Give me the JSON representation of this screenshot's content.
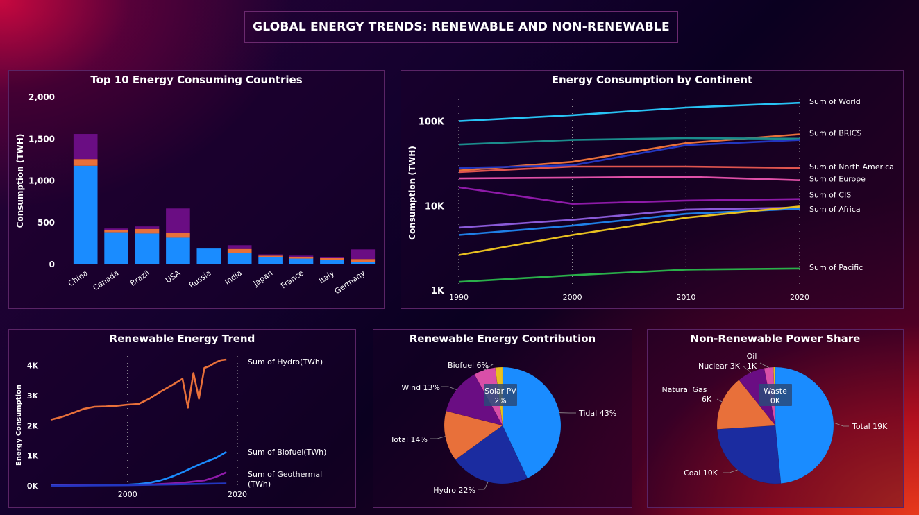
{
  "header": {
    "title": "GLOBAL ENERGY TRENDS: RENEWABLE AND NON-RENEWABLE"
  },
  "colors": {
    "blue": "#1a8cff",
    "orange": "#e8703a",
    "purple": "#6a0d83",
    "navy": "#1b2ca0",
    "magenta": "#d94fa8"
  },
  "chart_data": [
    {
      "id": "top10",
      "type": "bar",
      "title": "Top 10 Energy Consuming Countries",
      "ylabel": "Consumption (TWH)",
      "ylim": [
        0,
        2000
      ],
      "yticks": [
        "0",
        "500",
        "1,000",
        "1,500",
        "2,000"
      ],
      "categories": [
        "China",
        "Canada",
        "Brazil",
        "USA",
        "Russia",
        "India",
        "Japan",
        "France",
        "Italy",
        "Germany"
      ],
      "series": [
        {
          "values": [
            1180,
            385,
            370,
            320,
            190,
            140,
            85,
            70,
            55,
            25
          ]
        },
        {
          "values": [
            80,
            25,
            55,
            60,
            0,
            45,
            20,
            20,
            20,
            40
          ]
        },
        {
          "values": [
            300,
            20,
            30,
            290,
            0,
            45,
            15,
            15,
            10,
            115
          ]
        }
      ]
    },
    {
      "id": "continent",
      "type": "line",
      "title": "Energy Consumption by Continent",
      "ylabel": "Consumption (TWH)",
      "scale": "log",
      "ylim": [
        1000,
        200000
      ],
      "yticks": [
        {
          "v": 1000,
          "label": "1K"
        },
        {
          "v": 10000,
          "label": "10K"
        },
        {
          "v": 100000,
          "label": "100K"
        }
      ],
      "xlim": [
        1990,
        2020
      ],
      "xticks": [
        "1990",
        "2000",
        "2010",
        "2020"
      ],
      "series": [
        {
          "name": "Sum of World",
          "color": "#28c3f5",
          "x": [
            1990,
            2000,
            2010,
            2020
          ],
          "y": [
            100000,
            118000,
            145000,
            165000
          ]
        },
        {
          "name": "Sum of BRICS",
          "color": "#e8703a",
          "x": [
            1990,
            2000,
            2010,
            2020
          ],
          "y": [
            26000,
            33000,
            55000,
            70000
          ]
        },
        {
          "name": "",
          "color": "#1b8c8c",
          "x": [
            1990,
            2000,
            2010,
            2020
          ],
          "y": [
            53000,
            60000,
            63000,
            62000
          ]
        },
        {
          "name": "",
          "color": "#2336c0",
          "x": [
            1990,
            2000,
            2010,
            2020
          ],
          "y": [
            28000,
            30000,
            52000,
            60000
          ]
        },
        {
          "name": "Sum of North America",
          "color": "#e0554f",
          "x": [
            1990,
            2000,
            2010,
            2020
          ],
          "y": [
            25000,
            29000,
            29000,
            28000
          ]
        },
        {
          "name": "Sum of Europe",
          "color": "#e050a8",
          "x": [
            1990,
            2000,
            2010,
            2020
          ],
          "y": [
            21000,
            21500,
            22000,
            20000
          ]
        },
        {
          "name": "Sum of CIS",
          "color": "#8e1aa8",
          "x": [
            1990,
            2000,
            2010,
            2020
          ],
          "y": [
            16500,
            10500,
            11500,
            12000
          ]
        },
        {
          "name": "Sum of Africa",
          "color": "#8a5ad8",
          "x": [
            1990,
            2000,
            2010,
            2020
          ],
          "y": [
            5500,
            6800,
            9000,
            9500
          ]
        },
        {
          "name": "",
          "color": "#1f7fe6",
          "x": [
            1990,
            2000,
            2010,
            2020
          ],
          "y": [
            4500,
            5800,
            8000,
            9200
          ]
        },
        {
          "name": "",
          "color": "#e8c020",
          "x": [
            1990,
            2000,
            2010,
            2020
          ],
          "y": [
            2600,
            4500,
            7200,
            9800
          ]
        },
        {
          "name": "Sum of Pacific",
          "color": "#2ab04a",
          "x": [
            1990,
            2000,
            2010,
            2020
          ],
          "y": [
            1250,
            1500,
            1750,
            1800
          ]
        }
      ]
    },
    {
      "id": "renewable-trend",
      "type": "line",
      "title": "Renewable Energy Trend",
      "ylabel": "Energy Consumption",
      "ylim": [
        0,
        4500
      ],
      "yticks": [
        {
          "v": 0,
          "label": "0K"
        },
        {
          "v": 1000,
          "label": "1K"
        },
        {
          "v": 2000,
          "label": "2K"
        },
        {
          "v": 3000,
          "label": "3K"
        },
        {
          "v": 4000,
          "label": "4K"
        }
      ],
      "xlim": [
        1986,
        2020
      ],
      "xticks": [
        "2000",
        "2020"
      ],
      "series": [
        {
          "name": "Sum of Hydro(TWh)",
          "color": "#e8703a",
          "x": [
            1986,
            1988,
            1990,
            1992,
            1994,
            1996,
            1998,
            2000,
            2002,
            2004,
            2006,
            2008,
            2010,
            2011,
            2012,
            2013,
            2014,
            2015,
            2016,
            2017,
            2018
          ],
          "y": [
            2200,
            2290,
            2420,
            2560,
            2630,
            2640,
            2660,
            2700,
            2720,
            2900,
            3130,
            3340,
            3560,
            2600,
            3750,
            2900,
            3920,
            3990,
            4100,
            4180,
            4200
          ]
        },
        {
          "name": "Sum of Biofuel(TWh)",
          "color": "#1a8cff",
          "x": [
            1986,
            1990,
            1995,
            2000,
            2002,
            2004,
            2006,
            2008,
            2010,
            2012,
            2014,
            2016,
            2018
          ],
          "y": [
            20,
            25,
            30,
            40,
            60,
            100,
            180,
            300,
            450,
            620,
            780,
            920,
            1130
          ]
        },
        {
          "name": "Sum of Geothermal (TWh)",
          "color": "#8e1aa8",
          "x": [
            1986,
            1995,
            2000,
            2005,
            2010,
            2014,
            2016,
            2018
          ],
          "y": [
            10,
            20,
            30,
            50,
            100,
            180,
            290,
            450
          ]
        },
        {
          "name": "",
          "color": "#2336c0",
          "x": [
            1986,
            2000,
            2018
          ],
          "y": [
            5,
            20,
            80
          ]
        }
      ]
    },
    {
      "id": "renewable-contribution",
      "type": "pie",
      "title": "Renewable Energy Contribution",
      "slices": [
        {
          "label": "Tidal",
          "pct": "43%",
          "value": 43,
          "color": "#1a8cff"
        },
        {
          "label": "Hydro",
          "pct": "22%",
          "value": 22,
          "color": "#1b2ca0"
        },
        {
          "label": "Total",
          "pct": "14%",
          "value": 14,
          "color": "#e8703a"
        },
        {
          "label": "Wind",
          "pct": "13%",
          "value": 13,
          "color": "#6a0d83"
        },
        {
          "label": "Biofuel",
          "pct": "6%",
          "value": 6,
          "color": "#d94fa8"
        },
        {
          "label": "Solar PV",
          "pct": "2%",
          "value": 2,
          "color": "#e8c020"
        }
      ]
    },
    {
      "id": "nonrenewable-share",
      "type": "pie",
      "title": "Non-Renewable Power Share",
      "slices": [
        {
          "label": "Total",
          "pct": "19K",
          "value": 19,
          "color": "#1a8cff"
        },
        {
          "label": "Coal",
          "pct": "10K",
          "value": 10,
          "color": "#1b2ca0"
        },
        {
          "label": "Natural Gas",
          "pct": "6K",
          "value": 6,
          "color": "#e8703a"
        },
        {
          "label": "Nuclear",
          "pct": "3K",
          "value": 3,
          "color": "#6a0d83"
        },
        {
          "label": "Oil",
          "pct": "1K",
          "value": 1,
          "color": "#d94fa8"
        },
        {
          "label": "Waste",
          "pct": "0K",
          "value": 0.2,
          "color": "#e8c020"
        }
      ]
    }
  ]
}
